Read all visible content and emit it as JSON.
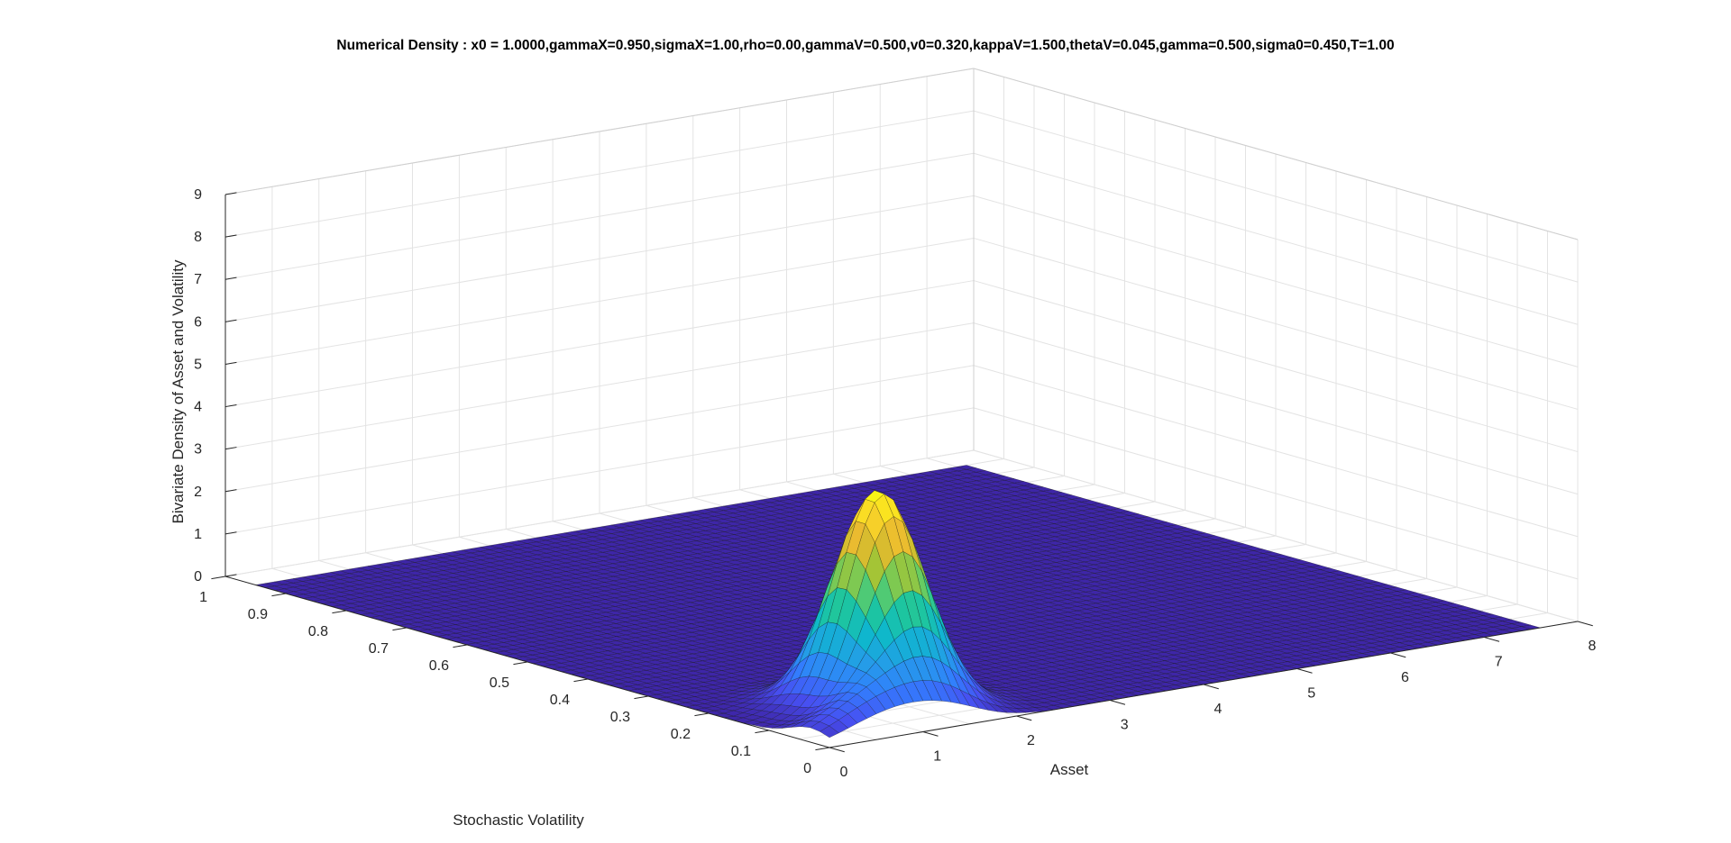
{
  "chart_data": {
    "type": "surface",
    "title": "Numerical Density : x0 = 1.0000,gammaX=0.950,sigmaX=1.00,rho=0.00,gammaV=0.500,v0=0.320,kappaV=1.500,thetaV=0.045,gamma=0.500,sigma0=0.450,T=1.00",
    "xlabel": "Asset",
    "ylabel": "Stochastic Volatility",
    "zlabel": "Bivariate Density of Asset and Volatility",
    "xlim": [
      0,
      8
    ],
    "ylim": [
      0,
      1
    ],
    "zlim": [
      0,
      9
    ],
    "x_ticks": [
      "0",
      "1",
      "2",
      "3",
      "4",
      "5",
      "6",
      "7",
      "8"
    ],
    "y_ticks": [
      "0",
      "0.1",
      "0.2",
      "0.3",
      "0.4",
      "0.5",
      "0.6",
      "0.7",
      "0.8",
      "0.9",
      "1"
    ],
    "z_ticks": [
      "0",
      "1",
      "2",
      "3",
      "4",
      "5",
      "6",
      "7",
      "8",
      "9"
    ],
    "colormap": "parula",
    "grid": true,
    "x_domain": [
      0,
      7.6
    ],
    "y_domain": [
      0,
      0.95
    ],
    "peak": {
      "x": 1.3,
      "y": 0.12,
      "z": 5.1
    },
    "sigma_x": 0.38,
    "sigma_y": 0.05
  }
}
